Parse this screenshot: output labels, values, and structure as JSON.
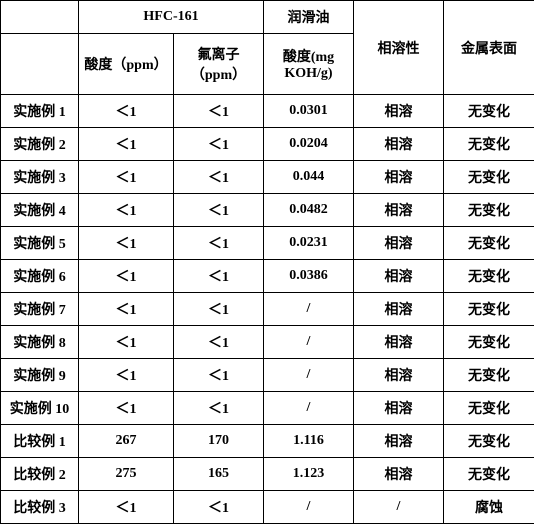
{
  "header": {
    "hfc": "HFC-161",
    "lubricant": "润滑油",
    "compatibility": "相溶性",
    "metalSurface": "金属表面",
    "acidityPpm": "酸度（ppm）",
    "fluorideIon": "氟离子（ppm）",
    "acidityMg": "酸度(mg KOH/g)"
  },
  "rows": [
    {
      "label": "实施例 1",
      "acidity": "＜1",
      "fluoride": "＜1",
      "lubAcid": "0.0301",
      "compat": "相溶",
      "metal": "无变化"
    },
    {
      "label": "实施例 2",
      "acidity": "＜1",
      "fluoride": "＜1",
      "lubAcid": "0.0204",
      "compat": "相溶",
      "metal": "无变化"
    },
    {
      "label": "实施例 3",
      "acidity": "＜1",
      "fluoride": "＜1",
      "lubAcid": "0.044",
      "compat": "相溶",
      "metal": "无变化"
    },
    {
      "label": "实施例 4",
      "acidity": "＜1",
      "fluoride": "＜1",
      "lubAcid": "0.0482",
      "compat": "相溶",
      "metal": "无变化"
    },
    {
      "label": "实施例 5",
      "acidity": "＜1",
      "fluoride": "＜1",
      "lubAcid": "0.0231",
      "compat": "相溶",
      "metal": "无变化"
    },
    {
      "label": "实施例 6",
      "acidity": "＜1",
      "fluoride": "＜1",
      "lubAcid": "0.0386",
      "compat": "相溶",
      "metal": "无变化"
    },
    {
      "label": "实施例 7",
      "acidity": "＜1",
      "fluoride": "＜1",
      "lubAcid": "/",
      "compat": "相溶",
      "metal": "无变化"
    },
    {
      "label": "实施例 8",
      "acidity": "＜1",
      "fluoride": "＜1",
      "lubAcid": "/",
      "compat": "相溶",
      "metal": "无变化"
    },
    {
      "label": "实施例 9",
      "acidity": "＜1",
      "fluoride": "＜1",
      "lubAcid": "/",
      "compat": "相溶",
      "metal": "无变化"
    },
    {
      "label": "实施例 10",
      "acidity": "＜1",
      "fluoride": "＜1",
      "lubAcid": "/",
      "compat": "相溶",
      "metal": "无变化"
    },
    {
      "label": "比较例 1",
      "acidity": "267",
      "fluoride": "170",
      "lubAcid": "1.116",
      "compat": "相溶",
      "metal": "无变化"
    },
    {
      "label": "比较例 2",
      "acidity": "275",
      "fluoride": "165",
      "lubAcid": "1.123",
      "compat": "相溶",
      "metal": "无变化"
    },
    {
      "label": "比较例 3",
      "acidity": "＜1",
      "fluoride": "＜1",
      "lubAcid": "/",
      "compat": "/",
      "metal": "腐蚀"
    }
  ]
}
